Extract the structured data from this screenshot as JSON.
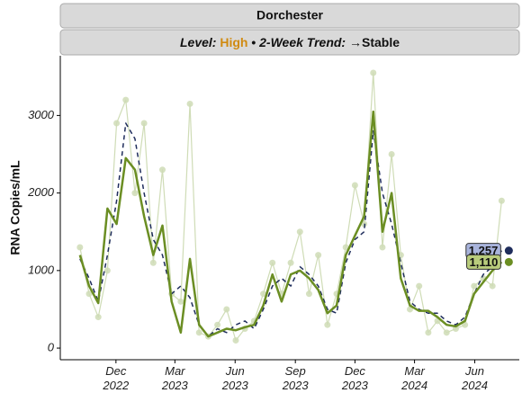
{
  "chart_data": {
    "type": "line",
    "strip": {
      "location": "Dorchester",
      "level_label": "Level:",
      "level": "High",
      "separator": "•",
      "trend_label": "2-Week Trend:",
      "trend": "→Stable"
    },
    "ylabel": "RNA Copies/mL",
    "x": [
      "2022-10-07",
      "2022-10-21",
      "2022-11-04",
      "2022-11-18",
      "2022-12-02",
      "2022-12-16",
      "2022-12-30",
      "2023-01-13",
      "2023-01-27",
      "2023-02-10",
      "2023-02-24",
      "2023-03-10",
      "2023-03-24",
      "2023-04-07",
      "2023-04-21",
      "2023-05-05",
      "2023-05-19",
      "2023-06-02",
      "2023-06-16",
      "2023-06-30",
      "2023-07-14",
      "2023-07-28",
      "2023-08-11",
      "2023-08-25",
      "2023-09-08",
      "2023-09-22",
      "2023-10-06",
      "2023-10-20",
      "2023-11-03",
      "2023-11-17",
      "2023-12-01",
      "2023-12-15",
      "2023-12-29",
      "2024-01-12",
      "2024-01-26",
      "2024-02-09",
      "2024-02-23",
      "2024-03-08",
      "2024-03-22",
      "2024-04-05",
      "2024-04-19",
      "2024-05-03",
      "2024-05-17",
      "2024-05-31",
      "2024-06-14",
      "2024-06-28",
      "2024-07-12"
    ],
    "series": [
      {
        "style": "points",
        "color": "#cfdcb6",
        "values": [
          1300,
          700,
          400,
          1000,
          2900,
          3200,
          2000,
          2900,
          1100,
          2300,
          700,
          600,
          3150,
          200,
          150,
          300,
          500,
          100,
          250,
          350,
          700,
          1100,
          700,
          1100,
          1500,
          700,
          1200,
          300,
          700,
          1300,
          2100,
          1600,
          3550,
          1300,
          2500,
          1200,
          500,
          800,
          200,
          350,
          200,
          250,
          300,
          800,
          900,
          800,
          1900
        ]
      },
      {
        "style": "dashed",
        "color": "#1f2d5c",
        "label_fill": "#a9b4dc",
        "values": [
          1150,
          900,
          600,
          1200,
          1900,
          2900,
          2700,
          2000,
          1400,
          1200,
          700,
          800,
          650,
          300,
          150,
          250,
          200,
          300,
          350,
          250,
          500,
          800,
          900,
          800,
          1050,
          950,
          800,
          500,
          450,
          1100,
          1400,
          1500,
          2800,
          2000,
          1600,
          1100,
          600,
          500,
          450,
          450,
          350,
          300,
          400,
          700,
          950,
          1050,
          1257
        ],
        "end_label": "1,257"
      },
      {
        "style": "solid",
        "color": "#6b8e23",
        "label_fill": "#b9cc7c",
        "values": [
          1200,
          800,
          580,
          1800,
          1600,
          2450,
          2300,
          1700,
          1200,
          1580,
          600,
          200,
          1150,
          300,
          150,
          200,
          250,
          230,
          270,
          300,
          550,
          950,
          600,
          950,
          1000,
          900,
          750,
          450,
          550,
          1200,
          1450,
          1700,
          3050,
          1500,
          2000,
          900,
          550,
          480,
          480,
          400,
          300,
          280,
          350,
          700,
          850,
          1000,
          1110
        ],
        "end_label": "1,110"
      }
    ],
    "xlim": [
      "2022-09-07",
      "2024-08-08"
    ],
    "xticks": [
      {
        "value": "2022-12-01",
        "label": "Dec\n2022"
      },
      {
        "value": "2023-03-01",
        "label": "Mar\n2023"
      },
      {
        "value": "2023-06-01",
        "label": "Jun\n2023"
      },
      {
        "value": "2023-09-01",
        "label": "Sep\n2023"
      },
      {
        "value": "2023-12-01",
        "label": "Dec\n2023"
      },
      {
        "value": "2024-03-01",
        "label": "Mar\n2024"
      },
      {
        "value": "2024-06-01",
        "label": "Jun\n2024"
      }
    ],
    "ylim": [
      -150,
      3770
    ],
    "yticks": [
      0,
      1000,
      2000,
      3000
    ]
  }
}
